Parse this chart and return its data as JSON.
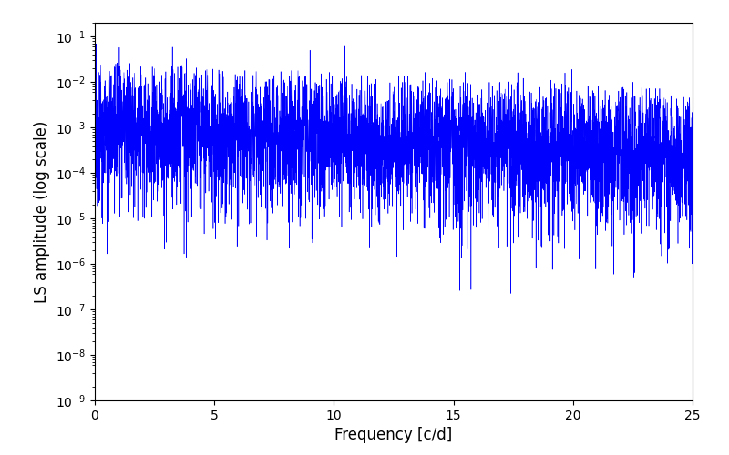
{
  "xlabel": "Frequency [c/d]",
  "ylabel": "LS amplitude (log scale)",
  "xlim": [
    0,
    25
  ],
  "ylim": [
    1e-09,
    0.2
  ],
  "line_color": "#0000FF",
  "background_color": "#ffffff",
  "figsize": [
    8.0,
    5.0
  ],
  "dpi": 100,
  "freq_max": 25.0,
  "n_points": 10000,
  "seed": 12345
}
